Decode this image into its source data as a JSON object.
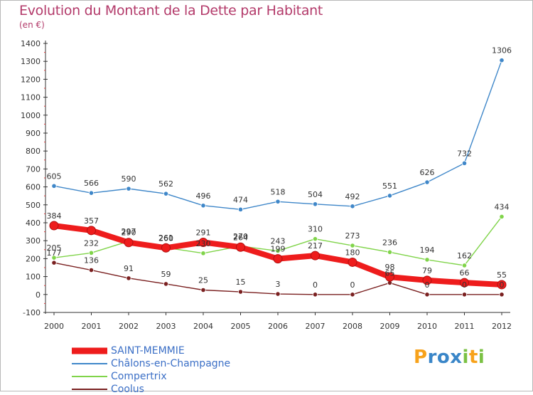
{
  "title": "Evolution du Montant de la Dette par Habitant",
  "unit": "(en €)",
  "logo_text": "Proxiti",
  "chart_data": {
    "type": "line",
    "x": [
      "2000",
      "2001",
      "2002",
      "2003",
      "2004",
      "2005",
      "2006",
      "2007",
      "2008",
      "2009",
      "2010",
      "2011",
      "2012"
    ],
    "ylim": [
      -100,
      1400
    ],
    "yticks": [
      -100,
      0,
      100,
      200,
      300,
      400,
      500,
      600,
      700,
      800,
      900,
      1000,
      1100,
      1200,
      1300,
      1400
    ],
    "grid": false,
    "legend_position": "bottom-left",
    "series": [
      {
        "name": "SAINT-MEMMIE",
        "color": "#ee1c1c",
        "values": [
          384,
          357,
          290,
          260,
          291,
          264,
          199,
          217,
          180,
          98,
          79,
          66,
          55
        ]
      },
      {
        "name": "Châlons-en-Champagne",
        "color": "#3f87c9",
        "values": [
          605,
          566,
          590,
          562,
          496,
          474,
          518,
          504,
          492,
          551,
          626,
          732,
          1306
        ]
      },
      {
        "name": "Compertrix",
        "color": "#80d44a",
        "values": [
          205,
          232,
          297,
          261,
          230,
          270,
          243,
          310,
          273,
          236,
          194,
          162,
          434
        ]
      },
      {
        "name": "Coolus",
        "color": "#7a2020",
        "values": [
          177,
          136,
          91,
          59,
          25,
          15,
          3,
          0,
          0,
          65,
          0,
          0,
          0
        ]
      }
    ]
  }
}
